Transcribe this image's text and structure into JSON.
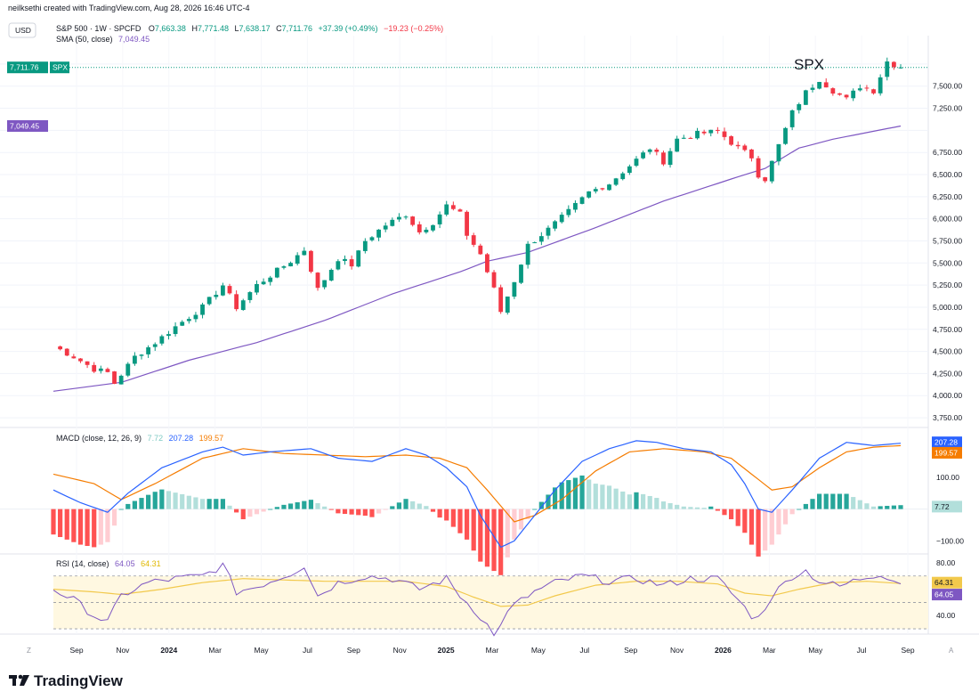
{
  "header": {
    "credit": "neilksethi created with TradingView.com, Aug 28, 2026 16:46 UTC-4",
    "currency": "USD",
    "symbol_line": "S&P 500 · 1W · SPCFD",
    "ohlc": {
      "o_label": "O",
      "o": "7,663.38",
      "h_label": "H",
      "h": "7,771.48",
      "l_label": "L",
      "l": "7,638.17",
      "c_label": "C",
      "c": "7,711.76",
      "change": "+37.39 (+0.49%)",
      "extra": "−19.23 (−0.25%)"
    },
    "sma_label": "SMA (50, close)",
    "sma_value": "7,049.45"
  },
  "annotation": "SPX",
  "price_badges": {
    "last": "7,711.76",
    "symbol": "SPX",
    "sma": "7,049.45"
  },
  "macd": {
    "label": "MACD (close, 12, 26, 9)",
    "hist": "7.72",
    "macd": "207.28",
    "signal": "199.57"
  },
  "rsi": {
    "label": "RSI (14, close)",
    "rsi": "64.05",
    "ma": "64.31"
  },
  "brand": "TradingView",
  "colors": {
    "up": "#089981",
    "down": "#f23645",
    "sma": "#7e57c2",
    "macd": "#2962ff",
    "signal": "#f57c00",
    "rsi": "#7e57c2",
    "rsi_ma": "#f2c94c"
  },
  "chart_data": {
    "type": "candlestick",
    "interval": "1W",
    "price_axis": {
      "ticks": [
        3750,
        4000,
        4250,
        4500,
        4750,
        5000,
        5250,
        5500,
        5750,
        6000,
        6250,
        6500,
        6750,
        7000,
        7250,
        7500,
        7750
      ],
      "labels": [
        "3,750.00",
        "4,000.00",
        "4,250.00",
        "4,500.00",
        "4,750.00",
        "5,000.00",
        "5,250.00",
        "5,500.00",
        "5,750.00",
        "6,000.00",
        "6,250.00",
        "6,500.00",
        "6,750.00",
        "",
        "7,250.00",
        "7,500.00",
        ""
      ],
      "range": [
        3660,
        7870
      ]
    },
    "time_axis": [
      "Sep",
      "Nov",
      "2024",
      "Mar",
      "May",
      "Jul",
      "Sep",
      "Nov",
      "2025",
      "Mar",
      "May",
      "Jul",
      "Sep",
      "Nov",
      "2026",
      "Mar",
      "May",
      "Jul",
      "Sep"
    ],
    "price_path": [
      [
        0,
        4560
      ],
      [
        3,
        4440
      ],
      [
        6,
        4300
      ],
      [
        8,
        4260
      ],
      [
        9,
        4140
      ],
      [
        12,
        4440
      ],
      [
        15,
        4600
      ],
      [
        18,
        4780
      ],
      [
        22,
        5000
      ],
      [
        25,
        5250
      ],
      [
        27,
        5000
      ],
      [
        30,
        5250
      ],
      [
        35,
        5520
      ],
      [
        37,
        5650
      ],
      [
        39,
        5200
      ],
      [
        42,
        5550
      ],
      [
        44,
        5480
      ],
      [
        46,
        5750
      ],
      [
        49,
        5930
      ],
      [
        52,
        6050
      ],
      [
        54,
        5850
      ],
      [
        56,
        5960
      ],
      [
        58,
        6150
      ],
      [
        60,
        6050
      ],
      [
        61,
        5820
      ],
      [
        63,
        5600
      ],
      [
        65,
        5200
      ],
      [
        66,
        4950
      ],
      [
        68,
        5300
      ],
      [
        70,
        5700
      ],
      [
        73,
        5880
      ],
      [
        76,
        6080
      ],
      [
        79,
        6300
      ],
      [
        82,
        6400
      ],
      [
        85,
        6600
      ],
      [
        88,
        6800
      ],
      [
        90,
        6650
      ],
      [
        92,
        6900
      ],
      [
        95,
        6960
      ],
      [
        98,
        6990
      ],
      [
        101,
        6800
      ],
      [
        103,
        6700
      ],
      [
        104,
        6500
      ],
      [
        105,
        6450
      ],
      [
        107,
        6830
      ],
      [
        109,
        7200
      ],
      [
        111,
        7430
      ],
      [
        113,
        7580
      ],
      [
        115,
        7450
      ],
      [
        117,
        7350
      ],
      [
        119,
        7500
      ],
      [
        121,
        7450
      ],
      [
        123,
        7780
      ],
      [
        125,
        7711.76
      ]
    ],
    "sma_path": [
      [
        0,
        4050
      ],
      [
        10,
        4150
      ],
      [
        20,
        4400
      ],
      [
        30,
        4600
      ],
      [
        40,
        4850
      ],
      [
        50,
        5150
      ],
      [
        60,
        5400
      ],
      [
        64,
        5520
      ],
      [
        70,
        5620
      ],
      [
        80,
        5900
      ],
      [
        90,
        6200
      ],
      [
        100,
        6450
      ],
      [
        105,
        6570
      ],
      [
        110,
        6800
      ],
      [
        115,
        6900
      ],
      [
        125,
        7049.45
      ]
    ],
    "macd_axis": {
      "ticks": [
        100,
        -100
      ],
      "labels": [
        "100.00",
        "−100.00"
      ],
      "range": [
        -130,
        240
      ]
    },
    "macd_path": [
      [
        0,
        60
      ],
      [
        4,
        20
      ],
      [
        8,
        -10
      ],
      [
        11,
        50
      ],
      [
        16,
        130
      ],
      [
        22,
        180
      ],
      [
        25,
        195
      ],
      [
        28,
        170
      ],
      [
        32,
        180
      ],
      [
        38,
        190
      ],
      [
        42,
        160
      ],
      [
        47,
        150
      ],
      [
        52,
        190
      ],
      [
        55,
        170
      ],
      [
        58,
        130
      ],
      [
        61,
        70
      ],
      [
        63,
        -20
      ],
      [
        66,
        -120
      ],
      [
        68,
        -100
      ],
      [
        71,
        -20
      ],
      [
        74,
        60
      ],
      [
        78,
        150
      ],
      [
        82,
        190
      ],
      [
        86,
        215
      ],
      [
        89,
        210
      ],
      [
        93,
        190
      ],
      [
        97,
        180
      ],
      [
        100,
        140
      ],
      [
        102,
        80
      ],
      [
        104,
        0
      ],
      [
        106,
        -10
      ],
      [
        109,
        60
      ],
      [
        113,
        160
      ],
      [
        117,
        210
      ],
      [
        121,
        200
      ],
      [
        125,
        207.28
      ]
    ],
    "signal_path": [
      [
        0,
        110
      ],
      [
        6,
        80
      ],
      [
        10,
        30
      ],
      [
        15,
        80
      ],
      [
        22,
        160
      ],
      [
        28,
        190
      ],
      [
        34,
        175
      ],
      [
        40,
        170
      ],
      [
        46,
        165
      ],
      [
        52,
        170
      ],
      [
        57,
        160
      ],
      [
        61,
        130
      ],
      [
        64,
        60
      ],
      [
        68,
        -40
      ],
      [
        71,
        -20
      ],
      [
        75,
        30
      ],
      [
        80,
        120
      ],
      [
        85,
        180
      ],
      [
        90,
        190
      ],
      [
        96,
        180
      ],
      [
        100,
        160
      ],
      [
        103,
        110
      ],
      [
        106,
        60
      ],
      [
        109,
        70
      ],
      [
        113,
        130
      ],
      [
        117,
        180
      ],
      [
        121,
        195
      ],
      [
        125,
        199.57
      ]
    ],
    "rsi_axis": {
      "ticks": [
        80,
        40
      ],
      "labels": [
        "80.00",
        "40.00"
      ],
      "range": [
        26,
        84
      ],
      "bands": [
        70,
        30
      ],
      "mid": 50
    },
    "rsi_path": [
      [
        0,
        60
      ],
      [
        3,
        52
      ],
      [
        6,
        40
      ],
      [
        8,
        35
      ],
      [
        10,
        55
      ],
      [
        14,
        65
      ],
      [
        18,
        68
      ],
      [
        22,
        70
      ],
      [
        25,
        78
      ],
      [
        27,
        58
      ],
      [
        30,
        62
      ],
      [
        35,
        72
      ],
      [
        37,
        78
      ],
      [
        39,
        55
      ],
      [
        42,
        65
      ],
      [
        46,
        70
      ],
      [
        50,
        68
      ],
      [
        54,
        60
      ],
      [
        58,
        68
      ],
      [
        60,
        55
      ],
      [
        62,
        45
      ],
      [
        64,
        33
      ],
      [
        65,
        24
      ],
      [
        66,
        35
      ],
      [
        68,
        48
      ],
      [
        71,
        58
      ],
      [
        74,
        65
      ],
      [
        78,
        70
      ],
      [
        82,
        66
      ],
      [
        86,
        68
      ],
      [
        90,
        63
      ],
      [
        94,
        68
      ],
      [
        98,
        68
      ],
      [
        101,
        52
      ],
      [
        103,
        40
      ],
      [
        104,
        38
      ],
      [
        106,
        55
      ],
      [
        109,
        70
      ],
      [
        111,
        74
      ],
      [
        113,
        66
      ],
      [
        116,
        62
      ],
      [
        119,
        68
      ],
      [
        122,
        72
      ],
      [
        125,
        64.05
      ]
    ],
    "rsi_ma_path": [
      [
        0,
        60
      ],
      [
        6,
        58
      ],
      [
        10,
        56
      ],
      [
        16,
        60
      ],
      [
        22,
        65
      ],
      [
        28,
        68
      ],
      [
        34,
        67
      ],
      [
        40,
        66
      ],
      [
        46,
        66
      ],
      [
        52,
        66
      ],
      [
        58,
        62
      ],
      [
        62,
        54
      ],
      [
        66,
        47
      ],
      [
        70,
        48
      ],
      [
        74,
        55
      ],
      [
        80,
        63
      ],
      [
        86,
        66
      ],
      [
        92,
        66
      ],
      [
        98,
        64
      ],
      [
        102,
        57
      ],
      [
        106,
        55
      ],
      [
        110,
        60
      ],
      [
        115,
        65
      ],
      [
        120,
        66
      ],
      [
        125,
        64.31
      ]
    ],
    "series": [
      {
        "name": "S&P 500"
      },
      {
        "name": "SMA (50, close)",
        "last": 7049.45
      },
      {
        "name": "MACD",
        "last": 207.28
      },
      {
        "name": "Signal",
        "last": 199.57
      },
      {
        "name": "Histogram",
        "last": 7.72
      },
      {
        "name": "RSI (14, close)",
        "last": 64.05
      },
      {
        "name": "RSI MA",
        "last": 64.31
      }
    ]
  }
}
